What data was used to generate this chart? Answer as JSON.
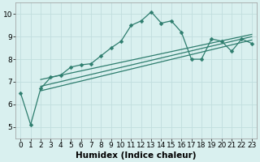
{
  "xlabel": "Humidex (Indice chaleur)",
  "ylabel": "",
  "bg_color": "#d9f0ef",
  "line_color": "#2e7d6e",
  "grid_major_color": "#c0dede",
  "grid_minor_color": "#c0dede",
  "xlim": [
    -0.5,
    23.5
  ],
  "ylim": [
    4.5,
    10.5
  ],
  "xticks": [
    0,
    1,
    2,
    3,
    4,
    5,
    6,
    7,
    8,
    9,
    10,
    11,
    12,
    13,
    14,
    15,
    16,
    17,
    18,
    19,
    20,
    21,
    22,
    23
  ],
  "yticks": [
    5,
    6,
    7,
    8,
    9,
    10
  ],
  "series_main": {
    "x": [
      0,
      1,
      2,
      3,
      4,
      5,
      6,
      7,
      8,
      9,
      10,
      11,
      12,
      13,
      14,
      15,
      16,
      17,
      18,
      19,
      20,
      21,
      22,
      23
    ],
    "y": [
      6.5,
      5.1,
      6.7,
      7.2,
      7.3,
      7.65,
      7.75,
      7.8,
      8.15,
      8.5,
      8.8,
      9.5,
      9.7,
      10.1,
      9.6,
      9.7,
      9.2,
      8.0,
      8.0,
      8.9,
      8.8,
      8.35,
      8.9,
      8.7
    ]
  },
  "series_lines": [
    {
      "x": [
        2,
        23
      ],
      "y": [
        6.6,
        8.85
      ]
    },
    {
      "x": [
        2,
        23
      ],
      "y": [
        6.8,
        9.0
      ]
    },
    {
      "x": [
        2,
        23
      ],
      "y": [
        7.1,
        9.1
      ]
    }
  ],
  "tick_fontsize": 6.5,
  "label_fontsize": 7.5
}
